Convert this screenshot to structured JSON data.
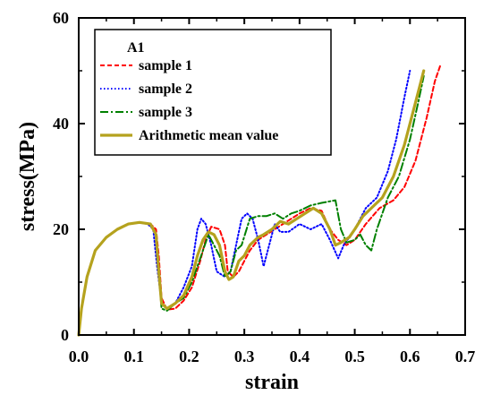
{
  "chart_data": {
    "type": "line",
    "title": "",
    "xlabel": "strain",
    "ylabel": "stress(MPa)",
    "xlim": [
      0,
      0.7
    ],
    "ylim": [
      0,
      60
    ],
    "xticks": [
      0.0,
      0.1,
      0.2,
      0.3,
      0.4,
      0.5,
      0.6,
      0.7
    ],
    "xtick_labels": [
      "0.0",
      "0.1",
      "0.2",
      "0.3",
      "0.4",
      "0.5",
      "0.6",
      "0.7"
    ],
    "yticks": [
      0,
      20,
      40,
      60
    ],
    "ytick_labels": [
      "0",
      "20",
      "40",
      "60"
    ],
    "grid": false,
    "legend": {
      "title": "A1",
      "placement": "top-left",
      "entries": [
        "sample 1",
        "sample 2",
        "sample 3",
        "Arithmetic mean value"
      ]
    },
    "series": [
      {
        "name": "sample 1",
        "color": "#ff0000",
        "style": "dashed",
        "points": [
          [
            0.0,
            0
          ],
          [
            0.005,
            5
          ],
          [
            0.015,
            11
          ],
          [
            0.03,
            16
          ],
          [
            0.05,
            18.5
          ],
          [
            0.07,
            20
          ],
          [
            0.09,
            21
          ],
          [
            0.11,
            21.3
          ],
          [
            0.13,
            21
          ],
          [
            0.14,
            20
          ],
          [
            0.145,
            15
          ],
          [
            0.15,
            7
          ],
          [
            0.16,
            4.8
          ],
          [
            0.175,
            5
          ],
          [
            0.19,
            6.5
          ],
          [
            0.205,
            9
          ],
          [
            0.22,
            14
          ],
          [
            0.23,
            18
          ],
          [
            0.24,
            20.5
          ],
          [
            0.255,
            20
          ],
          [
            0.265,
            17
          ],
          [
            0.27,
            12
          ],
          [
            0.28,
            11
          ],
          [
            0.29,
            12
          ],
          [
            0.3,
            14
          ],
          [
            0.31,
            16
          ],
          [
            0.325,
            18
          ],
          [
            0.34,
            19
          ],
          [
            0.355,
            20
          ],
          [
            0.37,
            21
          ],
          [
            0.385,
            22
          ],
          [
            0.4,
            23
          ],
          [
            0.42,
            24
          ],
          [
            0.44,
            23.5
          ],
          [
            0.455,
            20
          ],
          [
            0.47,
            18
          ],
          [
            0.485,
            17
          ],
          [
            0.5,
            18
          ],
          [
            0.52,
            21
          ],
          [
            0.545,
            24
          ],
          [
            0.57,
            25.5
          ],
          [
            0.59,
            28
          ],
          [
            0.61,
            33
          ],
          [
            0.63,
            41
          ],
          [
            0.645,
            48
          ],
          [
            0.655,
            51
          ]
        ]
      },
      {
        "name": "sample 2",
        "color": "#0000ff",
        "style": "dotted",
        "points": [
          [
            0.0,
            0
          ],
          [
            0.005,
            5
          ],
          [
            0.015,
            11
          ],
          [
            0.03,
            16
          ],
          [
            0.05,
            18.5
          ],
          [
            0.07,
            20
          ],
          [
            0.09,
            21
          ],
          [
            0.11,
            21.3
          ],
          [
            0.125,
            21
          ],
          [
            0.135,
            20
          ],
          [
            0.142,
            13
          ],
          [
            0.15,
            6
          ],
          [
            0.16,
            5
          ],
          [
            0.175,
            6
          ],
          [
            0.19,
            9
          ],
          [
            0.205,
            13
          ],
          [
            0.215,
            20
          ],
          [
            0.222,
            22
          ],
          [
            0.23,
            21
          ],
          [
            0.24,
            17
          ],
          [
            0.25,
            12
          ],
          [
            0.265,
            11
          ],
          [
            0.275,
            12
          ],
          [
            0.285,
            17
          ],
          [
            0.295,
            22
          ],
          [
            0.305,
            23
          ],
          [
            0.315,
            22
          ],
          [
            0.325,
            18
          ],
          [
            0.335,
            13
          ],
          [
            0.345,
            17
          ],
          [
            0.355,
            21
          ],
          [
            0.365,
            19.5
          ],
          [
            0.38,
            19.5
          ],
          [
            0.4,
            21
          ],
          [
            0.42,
            20
          ],
          [
            0.44,
            21
          ],
          [
            0.455,
            18
          ],
          [
            0.47,
            14.5
          ],
          [
            0.48,
            17
          ],
          [
            0.5,
            20
          ],
          [
            0.52,
            24
          ],
          [
            0.54,
            26
          ],
          [
            0.56,
            31
          ],
          [
            0.575,
            37
          ],
          [
            0.59,
            45
          ],
          [
            0.6,
            50
          ]
        ]
      },
      {
        "name": "sample 3",
        "color": "#008000",
        "style": "dashdot",
        "points": [
          [
            0.0,
            0
          ],
          [
            0.005,
            5
          ],
          [
            0.015,
            11
          ],
          [
            0.03,
            16
          ],
          [
            0.05,
            18.5
          ],
          [
            0.07,
            20
          ],
          [
            0.09,
            21
          ],
          [
            0.11,
            21.3
          ],
          [
            0.13,
            21
          ],
          [
            0.14,
            19
          ],
          [
            0.145,
            12
          ],
          [
            0.15,
            5
          ],
          [
            0.16,
            4.6
          ],
          [
            0.175,
            6
          ],
          [
            0.19,
            7
          ],
          [
            0.205,
            10
          ],
          [
            0.215,
            13
          ],
          [
            0.225,
            16
          ],
          [
            0.235,
            19
          ],
          [
            0.245,
            17
          ],
          [
            0.255,
            15
          ],
          [
            0.265,
            11
          ],
          [
            0.275,
            12
          ],
          [
            0.285,
            16
          ],
          [
            0.295,
            17
          ],
          [
            0.31,
            22
          ],
          [
            0.325,
            22.5
          ],
          [
            0.34,
            22.5
          ],
          [
            0.355,
            23
          ],
          [
            0.37,
            22
          ],
          [
            0.385,
            23
          ],
          [
            0.4,
            23.5
          ],
          [
            0.42,
            24.5
          ],
          [
            0.44,
            25
          ],
          [
            0.465,
            25.5
          ],
          [
            0.475,
            20
          ],
          [
            0.485,
            17.5
          ],
          [
            0.5,
            18
          ],
          [
            0.51,
            19
          ],
          [
            0.52,
            17
          ],
          [
            0.53,
            16
          ],
          [
            0.54,
            20
          ],
          [
            0.56,
            26
          ],
          [
            0.58,
            30
          ],
          [
            0.6,
            37
          ],
          [
            0.615,
            44
          ],
          [
            0.625,
            49
          ]
        ]
      },
      {
        "name": "Arithmetic mean value",
        "color": "#b5a21e",
        "style": "solid",
        "points": [
          [
            0.0,
            0
          ],
          [
            0.005,
            5
          ],
          [
            0.015,
            11
          ],
          [
            0.03,
            16
          ],
          [
            0.05,
            18.5
          ],
          [
            0.07,
            20
          ],
          [
            0.09,
            21
          ],
          [
            0.11,
            21.3
          ],
          [
            0.13,
            21
          ],
          [
            0.14,
            19
          ],
          [
            0.145,
            12
          ],
          [
            0.15,
            6
          ],
          [
            0.16,
            5
          ],
          [
            0.175,
            6
          ],
          [
            0.19,
            7.5
          ],
          [
            0.205,
            11
          ],
          [
            0.215,
            15
          ],
          [
            0.225,
            18
          ],
          [
            0.235,
            19.5
          ],
          [
            0.245,
            19
          ],
          [
            0.255,
            17
          ],
          [
            0.265,
            12
          ],
          [
            0.272,
            10.5
          ],
          [
            0.28,
            11
          ],
          [
            0.29,
            14
          ],
          [
            0.3,
            15
          ],
          [
            0.31,
            17
          ],
          [
            0.325,
            18.5
          ],
          [
            0.335,
            19
          ],
          [
            0.35,
            20
          ],
          [
            0.365,
            21.5
          ],
          [
            0.38,
            21
          ],
          [
            0.395,
            22
          ],
          [
            0.41,
            23
          ],
          [
            0.425,
            24
          ],
          [
            0.44,
            23
          ],
          [
            0.455,
            20
          ],
          [
            0.465,
            17
          ],
          [
            0.475,
            17.5
          ],
          [
            0.49,
            18.5
          ],
          [
            0.5,
            20
          ],
          [
            0.515,
            22.5
          ],
          [
            0.53,
            24
          ],
          [
            0.55,
            26
          ],
          [
            0.57,
            30
          ],
          [
            0.59,
            36
          ],
          [
            0.61,
            44
          ],
          [
            0.625,
            50
          ]
        ]
      }
    ]
  }
}
